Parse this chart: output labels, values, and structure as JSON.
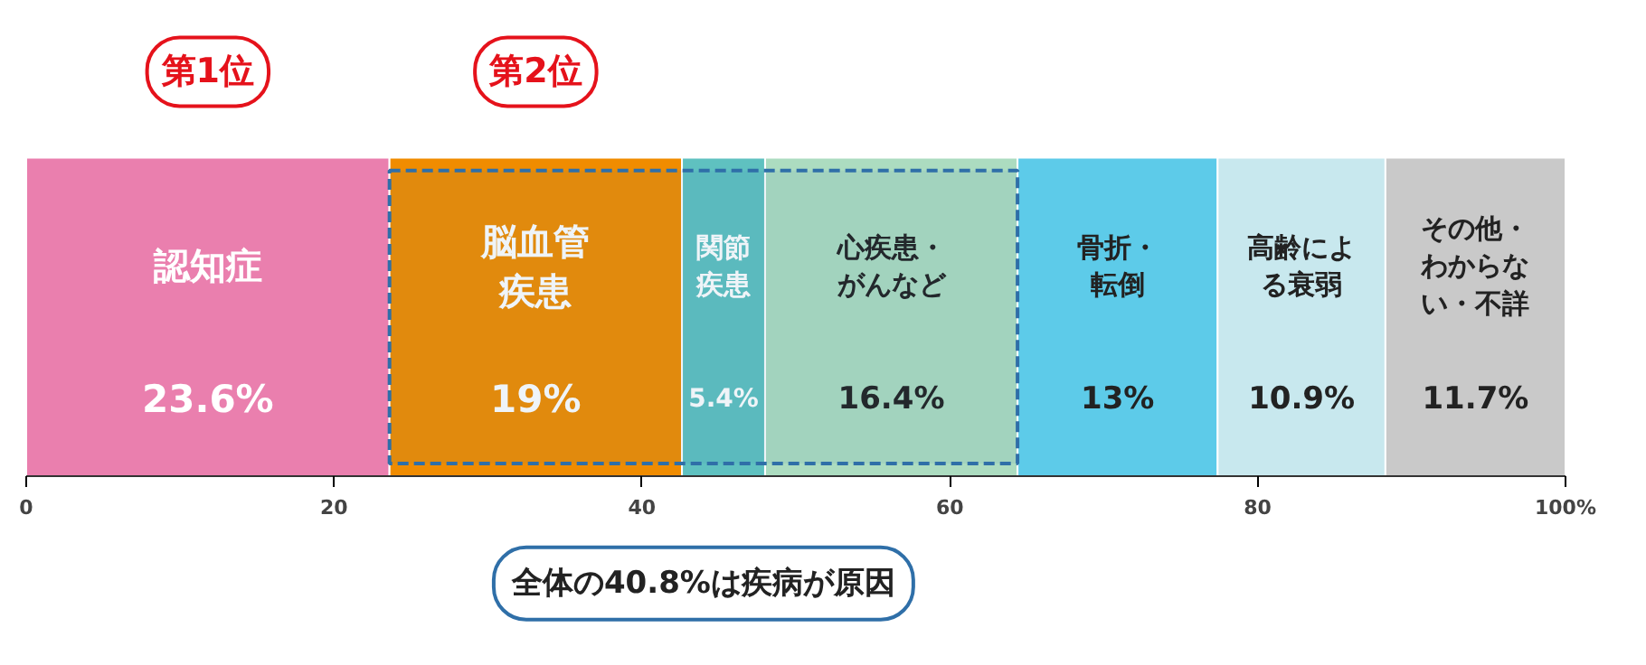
{
  "chart_data": {
    "type": "bar",
    "orientation": "horizontal",
    "stacked": true,
    "categories": [
      null
    ],
    "series": [
      {
        "name": "認知症",
        "color": "#ea7fae",
        "values": [
          23.6
        ],
        "value_labels": [
          "23.6%"
        ]
      },
      {
        "name": "脳血管疾患",
        "color": "#f08c00",
        "values": [
          19
        ],
        "value_labels": [
          "19%"
        ]
      },
      {
        "name": "関節疾患",
        "color": "#5fc1c0",
        "values": [
          5.4
        ],
        "value_labels": [
          "5.4%"
        ]
      },
      {
        "name": "心疾患・がんなど",
        "color": "#acdcc0",
        "values": [
          16.4
        ],
        "value_labels": [
          "16.4%"
        ]
      },
      {
        "name": "骨折・転倒",
        "color": "#5dcbe9",
        "values": [
          13
        ],
        "value_labels": [
          "13%"
        ]
      },
      {
        "name": "高齢による衰弱",
        "color": "#c8e8ee",
        "values": [
          10.9
        ],
        "value_labels": [
          "10.9%"
        ]
      },
      {
        "name": "その他・わからない・不詳",
        "color": "#c9c9c9",
        "values": [
          11.7
        ],
        "value_labels": [
          "11.7%"
        ]
      }
    ],
    "xlim": [
      0,
      100
    ],
    "xticks": [
      0,
      20,
      40,
      60,
      80,
      {
        "value": 100,
        "label": "100%"
      }
    ],
    "bands": [
      {
        "axis": "x",
        "from": 23.6,
        "to": 64.4,
        "color": "#2f6fa8"
      }
    ],
    "annotations": [
      "第1位",
      "第2位",
      "全体の40.8%は疾病が原因"
    ],
    "grid": false
  }
}
